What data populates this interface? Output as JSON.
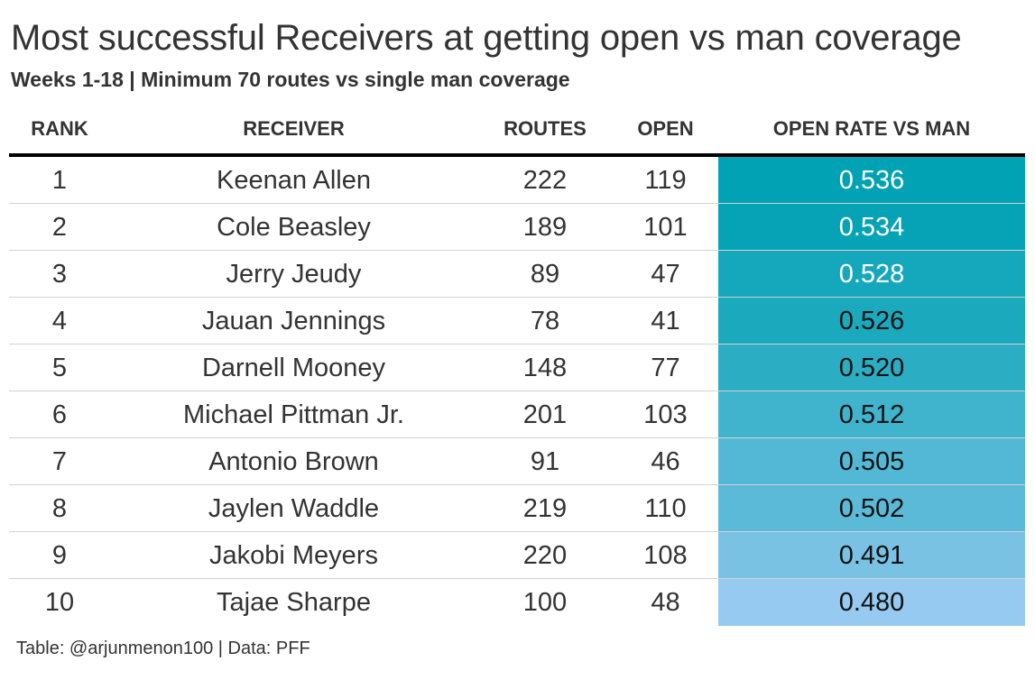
{
  "title": "Most successful Receivers at getting open vs man coverage",
  "subtitle": "Weeks 1-18 | Minimum 70 routes vs single man coverage",
  "caption": "Table: @arjunmenon100 | Data: PFF",
  "colors": {
    "rate_high": "#00A2B3",
    "rate_low": "#96CAF0",
    "text_dark": "#333333",
    "text_light": "#ffffff"
  },
  "chart_data": {
    "type": "table",
    "columns": [
      "RANK",
      "RECEIVER",
      "ROUTES",
      "OPEN",
      "OPEN RATE VS MAN"
    ],
    "rows": [
      {
        "rank": "1",
        "receiver": "Keenan Allen",
        "routes": "222",
        "open": "119",
        "rate": "0.536",
        "rate_value": 0.536
      },
      {
        "rank": "2",
        "receiver": "Cole Beasley",
        "routes": "189",
        "open": "101",
        "rate": "0.534",
        "rate_value": 0.534
      },
      {
        "rank": "3",
        "receiver": "Jerry Jeudy",
        "routes": "89",
        "open": "47",
        "rate": "0.528",
        "rate_value": 0.528
      },
      {
        "rank": "4",
        "receiver": "Jauan Jennings",
        "routes": "78",
        "open": "41",
        "rate": "0.526",
        "rate_value": 0.526
      },
      {
        "rank": "5",
        "receiver": "Darnell Mooney",
        "routes": "148",
        "open": "77",
        "rate": "0.520",
        "rate_value": 0.52
      },
      {
        "rank": "6",
        "receiver": "Michael Pittman Jr.",
        "routes": "201",
        "open": "103",
        "rate": "0.512",
        "rate_value": 0.512
      },
      {
        "rank": "7",
        "receiver": "Antonio Brown",
        "routes": "91",
        "open": "46",
        "rate": "0.505",
        "rate_value": 0.505
      },
      {
        "rank": "8",
        "receiver": "Jaylen Waddle",
        "routes": "219",
        "open": "110",
        "rate": "0.502",
        "rate_value": 0.502
      },
      {
        "rank": "9",
        "receiver": "Jakobi Meyers",
        "routes": "220",
        "open": "108",
        "rate": "0.491",
        "rate_value": 0.491
      },
      {
        "rank": "10",
        "receiver": "Tajae Sharpe",
        "routes": "100",
        "open": "48",
        "rate": "0.480",
        "rate_value": 0.48
      }
    ]
  }
}
